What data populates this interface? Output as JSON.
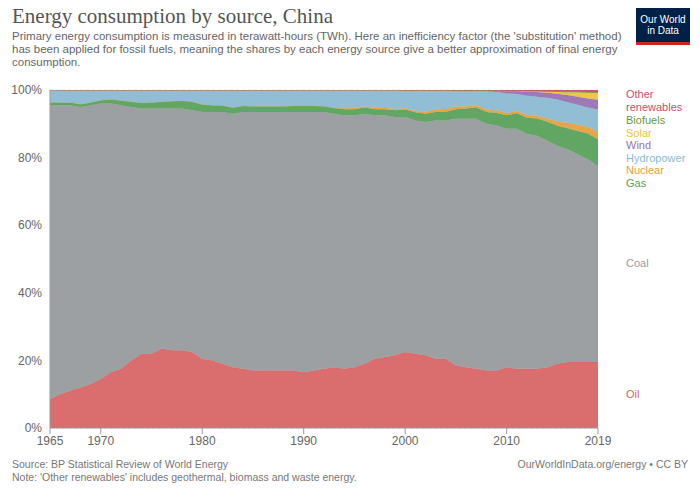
{
  "chart_data": {
    "type": "area",
    "stacked": true,
    "grid": true,
    "title": "Energy consumption by source, China",
    "subtitle": "Primary energy consumption is measured in terawatt-hours (TWh). Here an inefficiency factor (the 'substitution' method) has been applied for fossil fuels, meaning the shares by each energy source give a better approximation of final energy consumption.",
    "source": "Source: BP Statistical Review of World Energy",
    "note": "Note: 'Other renewables' includes geothermal, biomass and waste energy.",
    "credit": "OurWorldInData.org/energy • CC BY",
    "logo": "Our World in Data",
    "x": [
      1965,
      1966,
      1967,
      1968,
      1969,
      1970,
      1971,
      1972,
      1973,
      1974,
      1975,
      1976,
      1977,
      1978,
      1979,
      1980,
      1981,
      1982,
      1983,
      1984,
      1985,
      1986,
      1987,
      1988,
      1989,
      1990,
      1991,
      1992,
      1993,
      1994,
      1995,
      1996,
      1997,
      1998,
      1999,
      2000,
      2001,
      2002,
      2003,
      2004,
      2005,
      2006,
      2007,
      2008,
      2009,
      2010,
      2011,
      2012,
      2013,
      2014,
      2015,
      2016,
      2017,
      2018,
      2019
    ],
    "xlim": [
      1965,
      2019
    ],
    "xticks": [
      1965,
      1970,
      1980,
      1990,
      2000,
      2010,
      2019
    ],
    "ylim": [
      0,
      100
    ],
    "yticks": [
      {
        "value": 0,
        "label": "0%"
      },
      {
        "value": 20,
        "label": "20%"
      },
      {
        "value": 40,
        "label": "40%"
      },
      {
        "value": 60,
        "label": "60%"
      },
      {
        "value": 80,
        "label": "80%"
      },
      {
        "value": 100,
        "label": "100%"
      }
    ],
    "series": [
      {
        "name": "Oil",
        "color": "#d86565",
        "values": [
          8.5,
          10,
          11,
          12,
          13,
          14.5,
          16.5,
          17.5,
          20,
          22,
          22,
          23.5,
          23,
          23,
          22.5,
          20.5,
          20,
          19,
          18,
          17.5,
          17,
          17,
          17,
          17,
          17,
          16.5,
          17,
          17.5,
          18,
          17.5,
          18,
          19,
          20.5,
          21,
          21.5,
          22.5,
          22,
          21.5,
          20.5,
          20.5,
          18.5,
          18,
          17.5,
          17,
          17,
          18,
          17.5,
          17.5,
          17.5,
          18,
          19,
          19.5,
          19.5,
          19.5,
          19.5
        ]
      },
      {
        "name": "Coal",
        "color": "#989b9e",
        "values": [
          87,
          85.5,
          84.5,
          83,
          82.5,
          81.5,
          79.5,
          78,
          75,
          72.5,
          72.5,
          71,
          71.5,
          71.5,
          71.5,
          73,
          73.5,
          74.5,
          75,
          76,
          76.5,
          76.5,
          76.5,
          76.5,
          76.5,
          77,
          76.5,
          76,
          75,
          75,
          74.5,
          74,
          72,
          71.5,
          70.5,
          69.5,
          69,
          69,
          70.5,
          70.5,
          73,
          73.5,
          74,
          73,
          72.5,
          70.5,
          71,
          69.5,
          69,
          67,
          64.5,
          63,
          61.5,
          60,
          58
        ]
      },
      {
        "name": "Gas",
        "color": "#58a15a",
        "values": [
          0.8,
          0.8,
          0.8,
          0.8,
          0.8,
          1.0,
          1.2,
          1.4,
          1.5,
          1.7,
          1.8,
          2,
          2.2,
          2.3,
          2.5,
          2.2,
          2.0,
          1.9,
          1.8,
          1.8,
          1.7,
          1.7,
          1.7,
          1.7,
          1.8,
          1.8,
          1.8,
          1.7,
          1.7,
          1.8,
          1.8,
          1.8,
          1.8,
          1.8,
          2.0,
          2.2,
          2.4,
          2.5,
          2.5,
          2.6,
          2.8,
          3.0,
          3.3,
          3.5,
          3.7,
          4.0,
          4.6,
          4.8,
          5.1,
          5.6,
          5.9,
          6.2,
          6.9,
          7.6,
          7.9
        ]
      },
      {
        "name": "Nuclear",
        "color": "#e3a13f",
        "values": [
          0,
          0,
          0,
          0,
          0,
          0,
          0,
          0,
          0,
          0,
          0,
          0,
          0,
          0,
          0,
          0,
          0,
          0,
          0,
          0,
          0,
          0,
          0,
          0,
          0,
          0,
          0,
          0,
          0,
          0.3,
          0.4,
          0.4,
          0.4,
          0.4,
          0.4,
          0.4,
          0.4,
          0.6,
          0.8,
          0.8,
          0.8,
          0.7,
          0.7,
          0.7,
          0.7,
          0.7,
          0.7,
          0.8,
          0.8,
          1.0,
          1.3,
          1.6,
          1.8,
          2.0,
          2.2
        ]
      },
      {
        "name": "Hydropower",
        "color": "#8bbad2",
        "values": [
          3.7,
          3.7,
          3.7,
          4.2,
          3.7,
          3.0,
          2.8,
          3.1,
          3.5,
          3.8,
          3.7,
          3.5,
          3.3,
          3.2,
          3.5,
          4.3,
          4.5,
          4.6,
          5.2,
          4.7,
          4.8,
          4.8,
          4.8,
          4.8,
          4.7,
          4.7,
          4.7,
          4.8,
          5.3,
          5.4,
          5.3,
          4.8,
          5.3,
          5.3,
          5.6,
          5.3,
          6.1,
          6.3,
          5.6,
          5.5,
          4.7,
          4.6,
          4.2,
          5.4,
          5.5,
          5.8,
          5.0,
          5.7,
          5.6,
          6.1,
          6.5,
          6.1,
          5.9,
          5.7,
          6.6
        ]
      },
      {
        "name": "Wind",
        "color": "#9a72b3",
        "values": [
          0,
          0,
          0,
          0,
          0,
          0,
          0,
          0,
          0,
          0,
          0,
          0,
          0,
          0,
          0,
          0,
          0,
          0,
          0,
          0,
          0,
          0,
          0,
          0,
          0,
          0,
          0,
          0,
          0,
          0,
          0,
          0,
          0,
          0,
          0,
          0,
          0,
          0,
          0,
          0,
          0,
          0,
          0.1,
          0.2,
          0.4,
          0.7,
          0.9,
          1.2,
          1.4,
          1.5,
          1.7,
          2.1,
          2.4,
          2.7,
          2.9
        ]
      },
      {
        "name": "Solar",
        "color": "#e8c63c",
        "values": [
          0,
          0,
          0,
          0,
          0,
          0,
          0,
          0,
          0,
          0,
          0,
          0,
          0,
          0,
          0,
          0,
          0,
          0,
          0,
          0,
          0,
          0,
          0,
          0,
          0,
          0,
          0,
          0,
          0,
          0,
          0,
          0,
          0,
          0,
          0,
          0,
          0,
          0,
          0,
          0,
          0,
          0,
          0,
          0,
          0,
          0,
          0,
          0.1,
          0.2,
          0.3,
          0.5,
          0.8,
          1.3,
          1.7,
          2.0
        ]
      },
      {
        "name": "Biofuels",
        "color": "#6a9a3b",
        "values": [
          0,
          0,
          0,
          0,
          0,
          0,
          0,
          0,
          0,
          0,
          0,
          0,
          0,
          0,
          0,
          0,
          0,
          0,
          0,
          0,
          0,
          0,
          0,
          0,
          0,
          0,
          0,
          0,
          0,
          0,
          0,
          0,
          0,
          0,
          0,
          0,
          0,
          0,
          0,
          0,
          0.1,
          0.1,
          0.1,
          0.1,
          0.1,
          0.1,
          0.1,
          0.1,
          0.1,
          0.1,
          0.2,
          0.2,
          0.2,
          0.2,
          0.2
        ]
      },
      {
        "name": "Other renewables",
        "color": "#c9506e",
        "values": [
          0,
          0,
          0,
          0,
          0,
          0,
          0,
          0,
          0,
          0,
          0,
          0,
          0,
          0,
          0,
          0,
          0,
          0,
          0,
          0,
          0,
          0,
          0,
          0,
          0,
          0,
          0,
          0,
          0,
          0,
          0,
          0,
          0,
          0,
          0,
          0.1,
          0.1,
          0.1,
          0.1,
          0.1,
          0.1,
          0.1,
          0.1,
          0.1,
          0.1,
          0.2,
          0.2,
          0.3,
          0.3,
          0.4,
          0.4,
          0.5,
          0.5,
          0.6,
          0.7
        ]
      }
    ]
  }
}
